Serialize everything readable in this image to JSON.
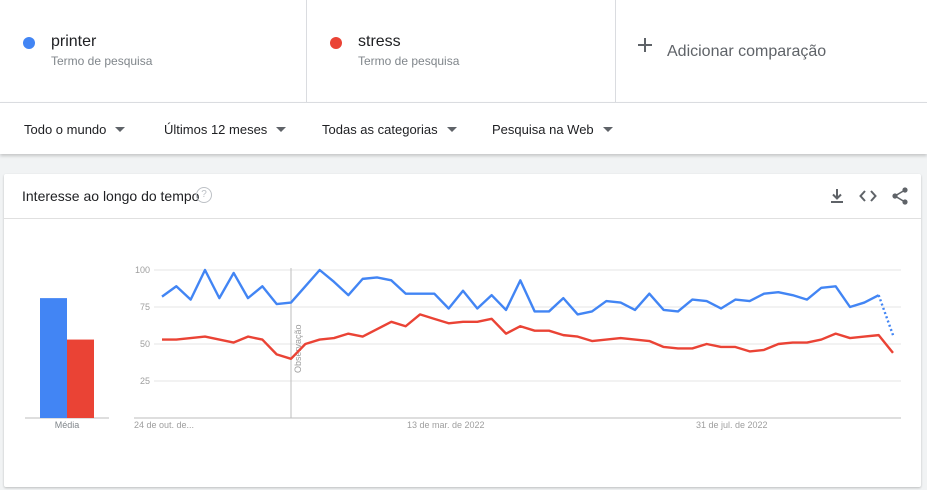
{
  "terms": [
    {
      "name": "printer",
      "sub": "Termo de pesquisa",
      "color": "#4285f4"
    },
    {
      "name": "stress",
      "sub": "Termo de pesquisa",
      "color": "#ea4335"
    }
  ],
  "add_comparison": "Adicionar comparação",
  "filters": {
    "region": "Todo o mundo",
    "period": "Últimos 12 meses",
    "category": "Todas as categorias",
    "search_type": "Pesquisa na Web"
  },
  "card": {
    "title": "Interesse ao longo do tempo",
    "help_icon": "help-circle-icon",
    "icons": [
      "download-icon",
      "embed-code-icon",
      "share-icon"
    ]
  },
  "average_label": "Média",
  "annotation": "Observação",
  "chart_data": {
    "type": "line",
    "ylim": [
      0,
      100
    ],
    "yticks": [
      25,
      50,
      75,
      100
    ],
    "x_tick_labels": [
      "24 de out. de...",
      "13 de mar. de 2022",
      "31 de jul. de 2022"
    ],
    "grid": true,
    "averages": [
      {
        "name": "printer",
        "value": 81,
        "color": "#4285f4"
      },
      {
        "name": "stress",
        "value": 53,
        "color": "#ea4335"
      }
    ],
    "series": [
      {
        "name": "printer",
        "color": "#4285f4",
        "partial_last_point": true,
        "values": [
          82,
          89,
          80,
          100,
          81,
          98,
          81,
          89,
          77,
          78,
          89,
          100,
          92,
          83,
          94,
          95,
          93,
          84,
          84,
          84,
          74,
          86,
          74,
          83,
          73,
          93,
          72,
          72,
          81,
          70,
          72,
          79,
          78,
          73,
          84,
          73,
          72,
          80,
          79,
          74,
          80,
          79,
          84,
          85,
          83,
          80,
          88,
          89,
          75,
          78,
          83,
          56
        ]
      },
      {
        "name": "stress",
        "color": "#ea4335",
        "partial_last_point": false,
        "values": [
          53,
          53,
          54,
          55,
          53,
          51,
          55,
          53,
          43,
          40,
          50,
          53,
          54,
          57,
          55,
          60,
          65,
          62,
          70,
          67,
          64,
          65,
          65,
          67,
          57,
          62,
          59,
          59,
          56,
          55,
          52,
          53,
          54,
          53,
          52,
          48,
          47,
          47,
          50,
          48,
          48,
          45,
          46,
          50,
          51,
          51,
          53,
          57,
          54,
          55,
          56,
          44
        ]
      }
    ]
  }
}
